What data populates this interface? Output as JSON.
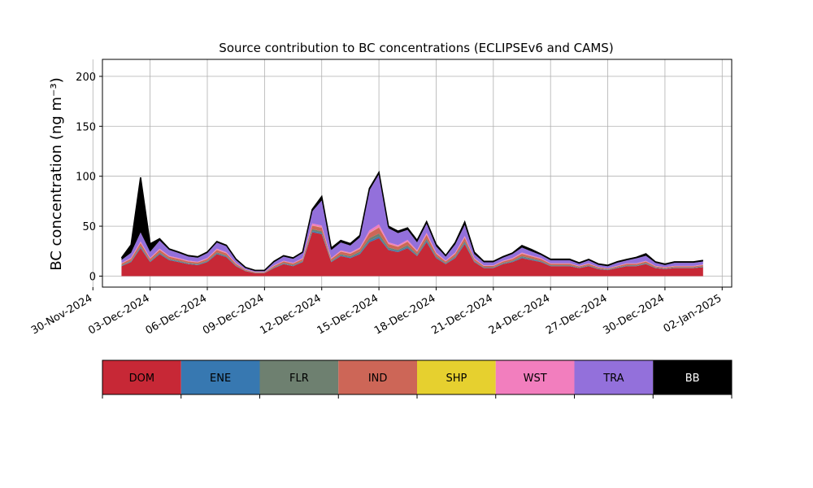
{
  "chart_data": {
    "type": "area",
    "title": "Source contribution to BC concentrations (ECLIPSEv6 and CAMS)",
    "ylabel": "BC concentration (ng m⁻³)",
    "xlabel": "",
    "ylim": [
      -11,
      217
    ],
    "xlim": [
      "2024-11-30T12:00",
      "2025-01-02T12:00"
    ],
    "grid": true,
    "x_tick_labels": [
      "30-Nov-2024",
      "03-Dec-2024",
      "06-Dec-2024",
      "09-Dec-2024",
      "12-Dec-2024",
      "15-Dec-2024",
      "18-Dec-2024",
      "21-Dec-2024",
      "24-Dec-2024",
      "27-Dec-2024",
      "30-Dec-2024",
      "02-Jan-2025"
    ],
    "x_ticks": [
      "2024-11-30",
      "2024-12-03",
      "2024-12-06",
      "2024-12-09",
      "2024-12-12",
      "2024-12-15",
      "2024-12-18",
      "2024-12-21",
      "2024-12-24",
      "2024-12-27",
      "2024-12-30",
      "2025-01-02"
    ],
    "y_ticks": [
      0,
      50,
      100,
      150,
      200
    ],
    "legend": {
      "position": "bottom",
      "entries": [
        {
          "name": "DOM",
          "color": "#c72836",
          "text_color": "#000000"
        },
        {
          "name": "ENE",
          "color": "#3778b1",
          "text_color": "#000000"
        },
        {
          "name": "FLR",
          "color": "#6e8070",
          "text_color": "#000000"
        },
        {
          "name": "IND",
          "color": "#cd6657",
          "text_color": "#000000"
        },
        {
          "name": "SHP",
          "color": "#e6d02f",
          "text_color": "#000000"
        },
        {
          "name": "WST",
          "color": "#f27ebe",
          "text_color": "#000000"
        },
        {
          "name": "TRA",
          "color": "#9370db",
          "text_color": "#000000"
        },
        {
          "name": "BB",
          "color": "#000000",
          "text_color": "#ffffff"
        }
      ]
    },
    "x": [
      "2024-12-01T12:00",
      "2024-12-02T00:00",
      "2024-12-02T12:00",
      "2024-12-03T00:00",
      "2024-12-03T12:00",
      "2024-12-04T00:00",
      "2024-12-04T12:00",
      "2024-12-05T00:00",
      "2024-12-05T12:00",
      "2024-12-06T00:00",
      "2024-12-06T12:00",
      "2024-12-07T00:00",
      "2024-12-07T12:00",
      "2024-12-08T00:00",
      "2024-12-08T12:00",
      "2024-12-09T00:00",
      "2024-12-09T12:00",
      "2024-12-10T00:00",
      "2024-12-10T12:00",
      "2024-12-11T00:00",
      "2024-12-11T12:00",
      "2024-12-12T00:00",
      "2024-12-12T12:00",
      "2024-12-13T00:00",
      "2024-12-13T12:00",
      "2024-12-14T00:00",
      "2024-12-14T12:00",
      "2024-12-15T00:00",
      "2024-12-15T12:00",
      "2024-12-16T00:00",
      "2024-12-16T12:00",
      "2024-12-17T00:00",
      "2024-12-17T12:00",
      "2024-12-18T00:00",
      "2024-12-18T12:00",
      "2024-12-19T00:00",
      "2024-12-19T12:00",
      "2024-12-20T00:00",
      "2024-12-20T12:00",
      "2024-12-21T00:00",
      "2024-12-21T12:00",
      "2024-12-22T00:00",
      "2024-12-22T12:00",
      "2024-12-23T00:00",
      "2024-12-23T12:00",
      "2024-12-24T00:00",
      "2024-12-24T12:00",
      "2024-12-25T00:00",
      "2024-12-25T12:00",
      "2024-12-26T00:00",
      "2024-12-26T12:00",
      "2024-12-27T00:00",
      "2024-12-27T12:00",
      "2024-12-28T00:00",
      "2024-12-28T12:00",
      "2024-12-29T00:00",
      "2024-12-29T12:00",
      "2024-12-30T00:00",
      "2024-12-30T12:00",
      "2024-12-31T00:00",
      "2024-12-31T12:00",
      "2025-01-01T00:00"
    ],
    "series": [
      {
        "name": "DOM",
        "values": [
          10,
          14,
          28,
          14,
          22,
          16,
          14,
          12,
          11,
          14,
          22,
          19,
          10,
          5,
          3,
          3,
          8,
          12,
          10,
          14,
          44,
          42,
          14,
          20,
          18,
          22,
          34,
          38,
          26,
          24,
          28,
          20,
          34,
          18,
          12,
          18,
          32,
          14,
          8,
          8,
          12,
          14,
          18,
          16,
          14,
          10,
          10,
          10,
          8,
          10,
          7,
          6,
          8,
          10,
          10,
          12,
          8,
          7,
          8,
          8,
          8,
          9
        ]
      },
      {
        "name": "ENE",
        "values": [
          0.4,
          0.6,
          1.0,
          0.6,
          0.8,
          0.6,
          0.6,
          0.5,
          0.5,
          0.6,
          0.8,
          0.7,
          0.4,
          0.2,
          0.2,
          0.2,
          0.4,
          0.5,
          0.5,
          0.6,
          1.2,
          1.2,
          0.6,
          0.8,
          0.8,
          1.0,
          1.5,
          1.6,
          1.1,
          1.0,
          1.2,
          0.8,
          1.4,
          0.8,
          0.5,
          0.8,
          1.2,
          0.6,
          0.4,
          0.4,
          0.5,
          0.6,
          0.8,
          0.7,
          0.6,
          0.4,
          0.4,
          0.4,
          0.3,
          0.4,
          0.3,
          0.3,
          0.4,
          0.4,
          0.4,
          0.5,
          0.3,
          0.3,
          0.3,
          0.3,
          0.3,
          0.4
        ]
      },
      {
        "name": "FLR",
        "values": [
          0.6,
          0.8,
          1.2,
          0.8,
          1.0,
          0.8,
          0.8,
          0.7,
          0.7,
          0.8,
          1.0,
          0.9,
          0.6,
          0.4,
          0.3,
          0.3,
          0.6,
          0.7,
          0.7,
          0.8,
          1.8,
          1.8,
          0.8,
          1.2,
          1.2,
          1.5,
          2.5,
          3.0,
          1.6,
          1.4,
          1.8,
          1.2,
          2.0,
          1.2,
          0.7,
          1.2,
          1.8,
          0.8,
          0.6,
          0.6,
          0.7,
          0.8,
          1.2,
          1.0,
          0.8,
          0.6,
          0.6,
          0.6,
          0.5,
          0.6,
          0.5,
          0.4,
          0.5,
          0.6,
          0.6,
          0.7,
          0.5,
          0.4,
          0.5,
          0.5,
          0.5,
          0.6
        ]
      },
      {
        "name": "IND",
        "values": [
          1.5,
          2.0,
          3.0,
          2.0,
          2.5,
          2.0,
          1.8,
          1.6,
          1.5,
          1.8,
          2.5,
          2.2,
          1.4,
          0.8,
          0.5,
          0.5,
          1.2,
          1.6,
          1.4,
          1.8,
          3.5,
          3.5,
          1.8,
          2.5,
          2.4,
          2.8,
          5.0,
          6.0,
          3.5,
          3.0,
          3.5,
          2.5,
          4.0,
          2.5,
          1.6,
          2.4,
          3.5,
          1.8,
          1.2,
          1.2,
          1.5,
          1.8,
          2.4,
          2.0,
          1.8,
          1.3,
          1.3,
          1.3,
          1.0,
          1.2,
          1.0,
          0.8,
          1.0,
          1.2,
          1.2,
          1.5,
          1.0,
          0.9,
          1.0,
          1.0,
          1.0,
          1.1
        ]
      },
      {
        "name": "SHP",
        "values": [
          0.1,
          0.1,
          0.2,
          0.1,
          0.2,
          0.1,
          0.1,
          0.1,
          0.1,
          0.1,
          0.2,
          0.1,
          0.1,
          0.05,
          0.05,
          0.05,
          0.1,
          0.1,
          0.1,
          0.1,
          0.2,
          0.2,
          0.1,
          0.2,
          0.2,
          0.2,
          0.3,
          0.3,
          0.2,
          0.2,
          0.2,
          0.2,
          0.3,
          0.2,
          0.1,
          0.2,
          0.2,
          0.1,
          0.1,
          0.1,
          0.1,
          0.1,
          0.2,
          0.1,
          0.1,
          0.1,
          0.1,
          0.1,
          0.1,
          0.1,
          0.1,
          0.05,
          0.1,
          0.1,
          0.1,
          0.1,
          0.1,
          0.05,
          0.1,
          0.1,
          0.1,
          0.1
        ]
      },
      {
        "name": "WST",
        "values": [
          0.6,
          0.8,
          1.4,
          0.8,
          1.0,
          0.8,
          0.8,
          0.7,
          0.6,
          0.8,
          1.1,
          1.0,
          0.6,
          0.3,
          0.2,
          0.2,
          0.5,
          0.6,
          0.6,
          0.8,
          2.0,
          2.0,
          0.8,
          1.0,
          1.0,
          1.2,
          2.5,
          3.0,
          1.5,
          1.4,
          1.6,
          1.1,
          1.8,
          1.0,
          0.7,
          1.0,
          1.5,
          0.8,
          0.5,
          0.5,
          0.6,
          0.8,
          1.0,
          0.9,
          0.8,
          0.5,
          0.5,
          0.5,
          0.4,
          0.5,
          0.4,
          0.3,
          0.4,
          0.5,
          0.5,
          0.6,
          0.4,
          0.4,
          0.4,
          0.4,
          0.4,
          0.5
        ]
      },
      {
        "name": "TRA",
        "values": [
          3,
          5,
          9,
          6,
          8,
          6,
          5,
          4,
          4,
          5,
          6,
          6,
          3,
          1.5,
          1,
          1,
          3,
          4,
          4,
          5,
          12,
          25,
          8,
          8,
          7,
          10,
          40,
          50,
          14,
          12,
          10,
          8,
          9,
          6,
          4,
          8,
          11,
          4,
          3,
          3,
          3,
          4,
          5,
          4,
          3,
          3,
          3,
          3,
          2,
          3,
          2,
          2,
          3,
          3,
          5,
          5,
          3,
          2,
          3,
          3,
          3,
          3
        ]
      },
      {
        "name": "BB",
        "values": [
          2,
          8,
          55,
          8,
          2,
          1,
          1,
          1,
          1,
          1,
          1,
          1,
          1,
          0.5,
          0.5,
          0.5,
          1,
          1,
          1,
          1,
          2,
          4,
          2,
          2,
          2,
          2,
          2,
          2,
          2,
          2,
          2,
          2,
          2,
          2,
          1,
          2,
          3,
          2,
          1,
          1,
          1,
          1,
          2,
          2,
          1,
          1,
          1,
          1,
          1,
          1,
          1,
          1,
          1,
          1,
          1,
          2,
          1,
          1,
          1,
          1,
          1,
          1
        ]
      }
    ]
  }
}
